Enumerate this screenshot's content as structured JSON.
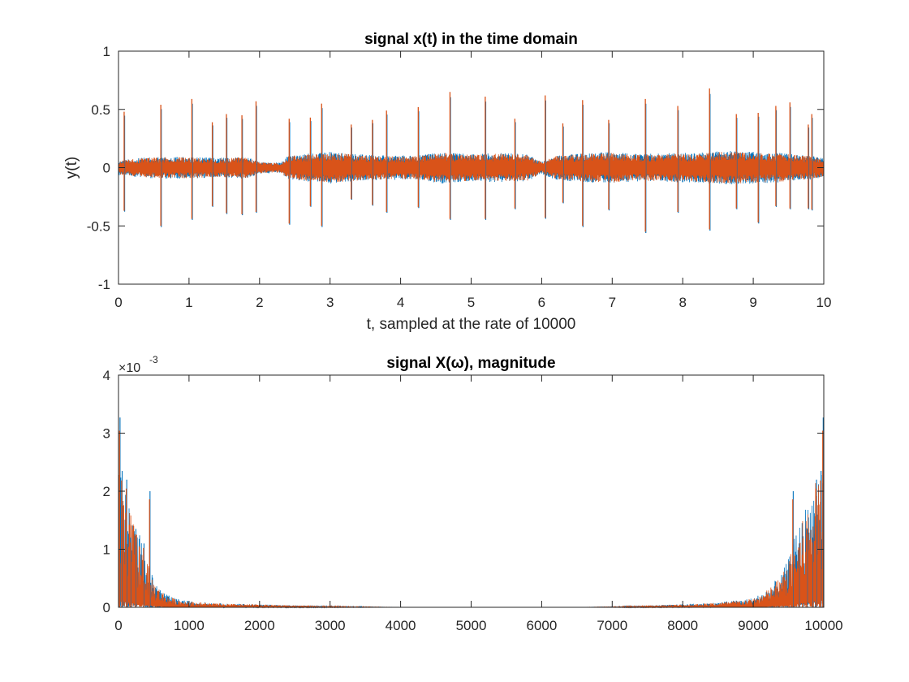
{
  "figure": {
    "colors": {
      "series1": "#0072BD",
      "series2": "#D95319",
      "axes": "#262626",
      "background": "#FFFFFF"
    }
  },
  "chart_data": [
    {
      "type": "line",
      "title": "signal x(t) in the time domain",
      "xlabel": "t, sampled at the rate of 10000",
      "ylabel": "y(t)",
      "xlim": [
        0,
        10
      ],
      "ylim": [
        -1,
        1
      ],
      "xticks": [
        0,
        1,
        2,
        3,
        4,
        5,
        6,
        7,
        8,
        9,
        10
      ],
      "xtick_labels": [
        "0",
        "1",
        "2",
        "3",
        "4",
        "5",
        "6",
        "7",
        "8",
        "9",
        "10"
      ],
      "yticks": [
        1,
        0.5,
        0,
        -0.5,
        -1
      ],
      "ytick_labels": [
        "1",
        "0.5",
        "0",
        "-0.5",
        "-1"
      ],
      "grid": false,
      "legend": "none",
      "noise_envelope": {
        "t": [
          0,
          0.3,
          0.6,
          1.0,
          1.4,
          1.8,
          2.0,
          2.3,
          2.4,
          2.8,
          3.0,
          3.4,
          3.8,
          4.2,
          4.6,
          5.0,
          5.4,
          5.8,
          6.0,
          6.2,
          6.6,
          7.0,
          7.4,
          7.8,
          8.2,
          8.6,
          9.0,
          9.4,
          9.8,
          10.0
        ],
        "amp": [
          0.06,
          0.08,
          0.09,
          0.09,
          0.08,
          0.09,
          0.05,
          0.04,
          0.1,
          0.12,
          0.13,
          0.11,
          0.1,
          0.1,
          0.13,
          0.11,
          0.12,
          0.11,
          0.05,
          0.1,
          0.12,
          0.13,
          0.11,
          0.12,
          0.12,
          0.14,
          0.13,
          0.12,
          0.1,
          0.08
        ]
      },
      "spikes": [
        {
          "t": 0.08,
          "top": 0.48,
          "bottom": -0.37
        },
        {
          "t": 0.6,
          "top": 0.54,
          "bottom": -0.5
        },
        {
          "t": 1.04,
          "top": 0.59,
          "bottom": -0.44
        },
        {
          "t": 1.33,
          "top": 0.39,
          "bottom": -0.33
        },
        {
          "t": 1.53,
          "top": 0.46,
          "bottom": -0.39
        },
        {
          "t": 1.75,
          "top": 0.45,
          "bottom": -0.4
        },
        {
          "t": 1.95,
          "top": 0.57,
          "bottom": -0.38
        },
        {
          "t": 2.42,
          "top": 0.42,
          "bottom": -0.48
        },
        {
          "t": 2.72,
          "top": 0.43,
          "bottom": -0.33
        },
        {
          "t": 2.88,
          "top": 0.55,
          "bottom": -0.5
        },
        {
          "t": 3.3,
          "top": 0.37,
          "bottom": -0.27
        },
        {
          "t": 3.6,
          "top": 0.41,
          "bottom": -0.32
        },
        {
          "t": 3.8,
          "top": 0.49,
          "bottom": -0.38
        },
        {
          "t": 4.25,
          "top": 0.52,
          "bottom": -0.34
        },
        {
          "t": 4.7,
          "top": 0.65,
          "bottom": -0.44
        },
        {
          "t": 5.2,
          "top": 0.61,
          "bottom": -0.44
        },
        {
          "t": 5.62,
          "top": 0.42,
          "bottom": -0.35
        },
        {
          "t": 6.05,
          "top": 0.62,
          "bottom": -0.43
        },
        {
          "t": 6.3,
          "top": 0.38,
          "bottom": -0.3
        },
        {
          "t": 6.58,
          "top": 0.58,
          "bottom": -0.5
        },
        {
          "t": 6.95,
          "top": 0.41,
          "bottom": -0.36
        },
        {
          "t": 7.47,
          "top": 0.59,
          "bottom": -0.55
        },
        {
          "t": 7.93,
          "top": 0.53,
          "bottom": -0.38
        },
        {
          "t": 8.38,
          "top": 0.68,
          "bottom": -0.53
        },
        {
          "t": 8.76,
          "top": 0.46,
          "bottom": -0.35
        },
        {
          "t": 9.07,
          "top": 0.47,
          "bottom": -0.47
        },
        {
          "t": 9.32,
          "top": 0.53,
          "bottom": -0.33
        },
        {
          "t": 9.52,
          "top": 0.56,
          "bottom": -0.35
        },
        {
          "t": 9.78,
          "top": 0.37,
          "bottom": -0.35
        },
        {
          "t": 9.83,
          "top": 0.46,
          "bottom": -0.36
        }
      ]
    },
    {
      "type": "line",
      "title": "signal X(ω), magnitude",
      "xlabel": "",
      "ylabel": "",
      "xlim": [
        0,
        10000
      ],
      "ylim": [
        0,
        4
      ],
      "y_multiplier": {
        "base": "×10",
        "exponent": "-3"
      },
      "xticks": [
        0,
        1000,
        2000,
        3000,
        4000,
        5000,
        6000,
        7000,
        8000,
        9000,
        10000
      ],
      "xtick_labels": [
        "0",
        "1000",
        "2000",
        "3000",
        "4000",
        "5000",
        "6000",
        "7000",
        "8000",
        "9000",
        "10000"
      ],
      "yticks": [
        4,
        3,
        2,
        1,
        0
      ],
      "ytick_labels": [
        "4",
        "3",
        "2",
        "1",
        "0"
      ],
      "grid": false,
      "legend": "none",
      "magnitude_envelope": {
        "f": [
          0,
          20,
          50,
          100,
          200,
          300,
          400,
          500,
          600,
          700,
          800,
          1000,
          1500,
          2000,
          2500,
          3000,
          3500,
          4000,
          6500,
          7000,
          7500,
          8000,
          8500,
          9000,
          9200,
          9400,
          9500,
          9600,
          9700,
          9800,
          9900,
          9950,
          9980,
          10000
        ],
        "mag": [
          2.6,
          2.4,
          2.2,
          1.9,
          1.5,
          1.2,
          0.8,
          0.45,
          0.3,
          0.2,
          0.15,
          0.1,
          0.06,
          0.05,
          0.03,
          0.02,
          0.01,
          0.0,
          0.0,
          0.01,
          0.03,
          0.05,
          0.08,
          0.15,
          0.3,
          0.55,
          0.8,
          1.2,
          1.5,
          1.9,
          2.2,
          2.4,
          2.6,
          2.6
        ]
      },
      "peaks": [
        {
          "f": 15,
          "value": 3.27
        },
        {
          "f": 45,
          "value": 2.35
        },
        {
          "f": 110,
          "value": 2.2
        },
        {
          "f": 165,
          "value": 1.2
        },
        {
          "f": 240,
          "value": 1.35
        },
        {
          "f": 355,
          "value": 1.1
        },
        {
          "f": 440,
          "value": 2.0
        },
        {
          "f": 9560,
          "value": 2.0
        },
        {
          "f": 9645,
          "value": 1.1
        },
        {
          "f": 9760,
          "value": 1.35
        },
        {
          "f": 9835,
          "value": 1.2
        },
        {
          "f": 9890,
          "value": 2.2
        },
        {
          "f": 9955,
          "value": 2.35
        },
        {
          "f": 9985,
          "value": 3.27
        }
      ]
    }
  ]
}
